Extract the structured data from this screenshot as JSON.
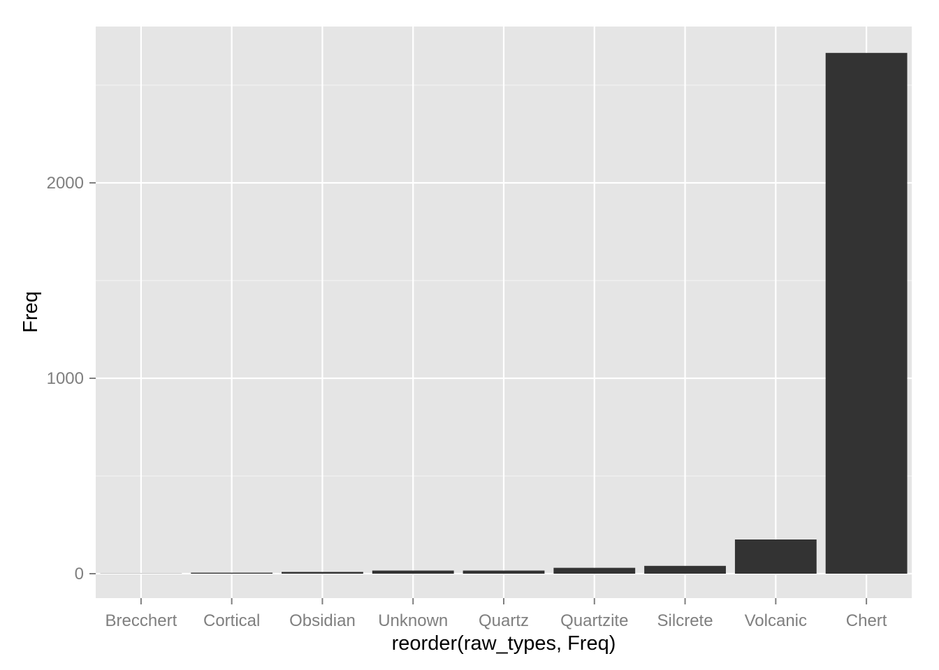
{
  "chart_data": {
    "type": "bar",
    "title": "",
    "xlabel": "reorder(raw_types, Freq)",
    "ylabel": "Freq",
    "categories": [
      "Brecchert",
      "Cortical",
      "Obsidian",
      "Unknown",
      "Quartz",
      "Quartzite",
      "Silcrete",
      "Volcanic",
      "Chert"
    ],
    "values": [
      1,
      5,
      9,
      16,
      16,
      30,
      40,
      175,
      2665
    ],
    "ylim": [
      -125,
      2800
    ],
    "yticks": [
      0,
      1000,
      2000
    ],
    "ytick_labels": [
      "0",
      "1000",
      "2000"
    ],
    "grid": true,
    "legend": "none",
    "colors": {
      "panel": "#e5e5e5",
      "bar": "#333333",
      "grid_major": "#ffffff",
      "grid_minor": "#f2f2f2",
      "tick_label": "#7f7f7f",
      "axis_title": "#000000"
    }
  }
}
